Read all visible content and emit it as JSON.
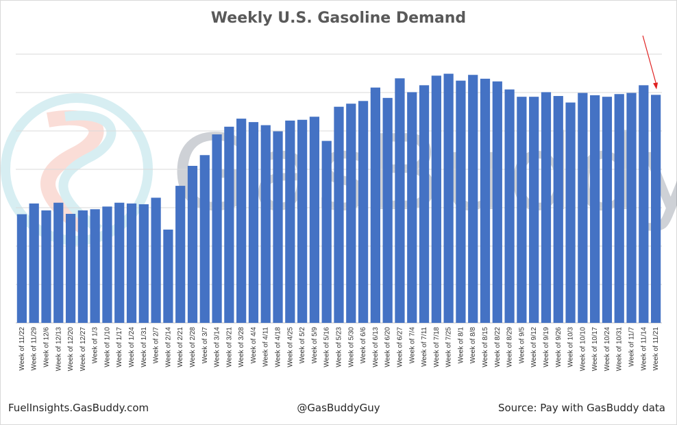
{
  "chart_data": {
    "type": "bar",
    "title": "Weekly U.S. Gasoline Demand",
    "xlabel": "",
    "ylabel": "",
    "ylim": [
      0,
      7
    ],
    "gridlines": true,
    "series_color": "#4472c4",
    "annotation_color": "#e02020",
    "categories": [
      "Week of 11/22",
      "Week of 11/29",
      "Week of 12/6",
      "Week of 12/13",
      "Week of 12/20",
      "Week of 12/27",
      "Week of 1/3",
      "Week of 1/10",
      "Week of 1/17",
      "Week of 1/24",
      "Week of 1/31",
      "Week of 2/7",
      "Week of 2/14",
      "Week of 2/21",
      "Week of 2/28",
      "Week of 3/7",
      "Week of 3/14",
      "Week of 3/21",
      "Week of 3/28",
      "Week of 4/4",
      "Week of 4/11",
      "Week of 4/18",
      "Week of 4/25",
      "Week of 5/2",
      "Week of 5/9",
      "Week of 5/16",
      "Week of 5/23",
      "Week of 5/30",
      "Week of 6/6",
      "Week of 6/13",
      "Week of 6/20",
      "Week of 6/27",
      "Week of 7/4",
      "Week of 7/11",
      "Week of 7/18",
      "Week of 7/25",
      "Week of 8/1",
      "Week of 8/8",
      "Week of 8/15",
      "Week of 8/22",
      "Week of 8/29",
      "Week of 9/5",
      "Week of 9/12",
      "Week of 9/19",
      "Week of 9/26",
      "Week of 10/3",
      "Week of 10/10",
      "Week of 10/17",
      "Week of 10/24",
      "Week of 10/31",
      "Week of 11/7",
      "Week of 11/14",
      "Week of 11/21"
    ],
    "values": [
      2.83,
      3.11,
      2.93,
      3.13,
      2.84,
      2.93,
      2.96,
      3.03,
      3.13,
      3.11,
      3.09,
      3.26,
      2.43,
      3.57,
      4.09,
      4.37,
      4.91,
      5.11,
      5.32,
      5.23,
      5.15,
      4.99,
      5.27,
      5.29,
      5.37,
      4.74,
      5.63,
      5.71,
      5.78,
      6.13,
      5.86,
      6.37,
      6.01,
      6.19,
      6.44,
      6.49,
      6.31,
      6.46,
      6.36,
      6.29,
      6.08,
      5.89,
      5.89,
      6.01,
      5.91,
      5.74,
      5.99,
      5.93,
      5.89,
      5.96,
      5.99,
      6.19,
      5.94
    ],
    "annotation": {
      "type": "arrow",
      "target_category": "Week of 11/21"
    }
  },
  "footer": {
    "left": "FuelInsights.GasBuddy.com",
    "center": "@GasBuddyGuy",
    "right": "Source: Pay with GasBuddy data"
  },
  "watermark": {
    "text": "GasBuddy"
  }
}
